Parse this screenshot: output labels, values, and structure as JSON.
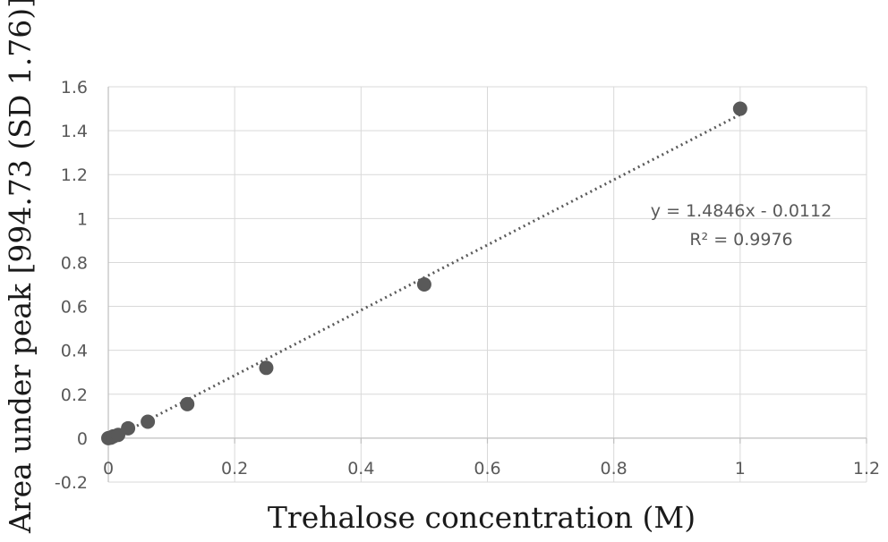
{
  "chart_data": {
    "type": "scatter",
    "xlabel": "Trehalose concentration (M)",
    "ylabel": "Area under peak [994.73 (SD 1.76)]",
    "xlim": [
      0,
      1.2
    ],
    "ylim": [
      -0.2,
      1.6
    ],
    "xticks": [
      "0",
      "0.2",
      "0.4",
      "0.6",
      "0.8",
      "1",
      "1.2"
    ],
    "yticks": [
      "-0.2",
      "0",
      "0.2",
      "0.4",
      "0.6",
      "0.8",
      "1",
      "1.2",
      "1.4",
      "1.6"
    ],
    "grid": true,
    "points": [
      {
        "x": 0,
        "y": 0
      },
      {
        "x": 0.0039,
        "y": 0.002
      },
      {
        "x": 0.0078,
        "y": 0.008
      },
      {
        "x": 0.0156,
        "y": 0.015
      },
      {
        "x": 0.0313,
        "y": 0.045
      },
      {
        "x": 0.0625,
        "y": 0.075
      },
      {
        "x": 0.125,
        "y": 0.155
      },
      {
        "x": 0.25,
        "y": 0.32
      },
      {
        "x": 0.5,
        "y": 0.7
      },
      {
        "x": 1.0,
        "y": 1.5
      }
    ],
    "trendline": {
      "type": "linear",
      "slope": 1.4846,
      "intercept": -0.0112,
      "x_range": [
        0,
        1.0
      ],
      "equation": "y = 1.4846x - 0.0112",
      "r_squared": "R² = 0.9976"
    },
    "colors": {
      "points": "#595959",
      "trendline": "#5a5a5a",
      "grid": "#d9d9d9"
    }
  }
}
